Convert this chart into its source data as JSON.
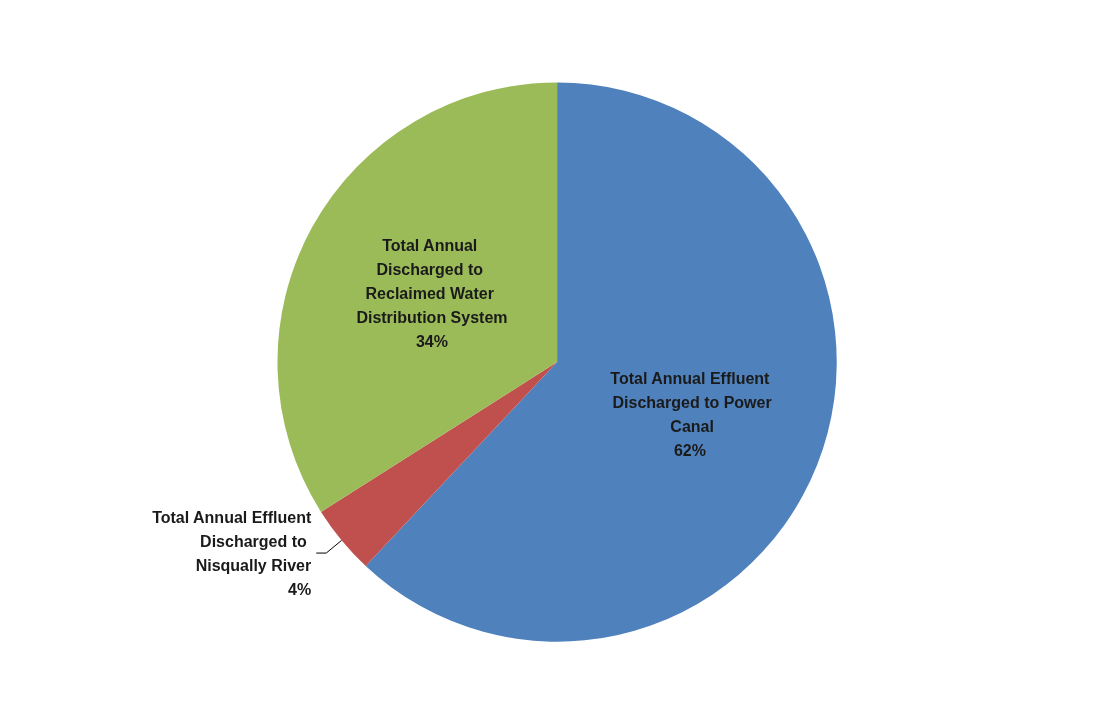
{
  "chart_data": {
    "type": "pie",
    "categories": [
      "Total Annual Effluent Discharged to Power Canal",
      "Total Annual Effluent Discharged to Nisqually River",
      "Total Annual Discharged to Reclaimed Water Distribution System"
    ],
    "values": [
      62,
      4,
      34
    ],
    "colors": [
      "#4f81bd",
      "#c0504d",
      "#9bbb59"
    ],
    "value_labels": [
      "62%",
      "4%",
      "34%"
    ]
  }
}
